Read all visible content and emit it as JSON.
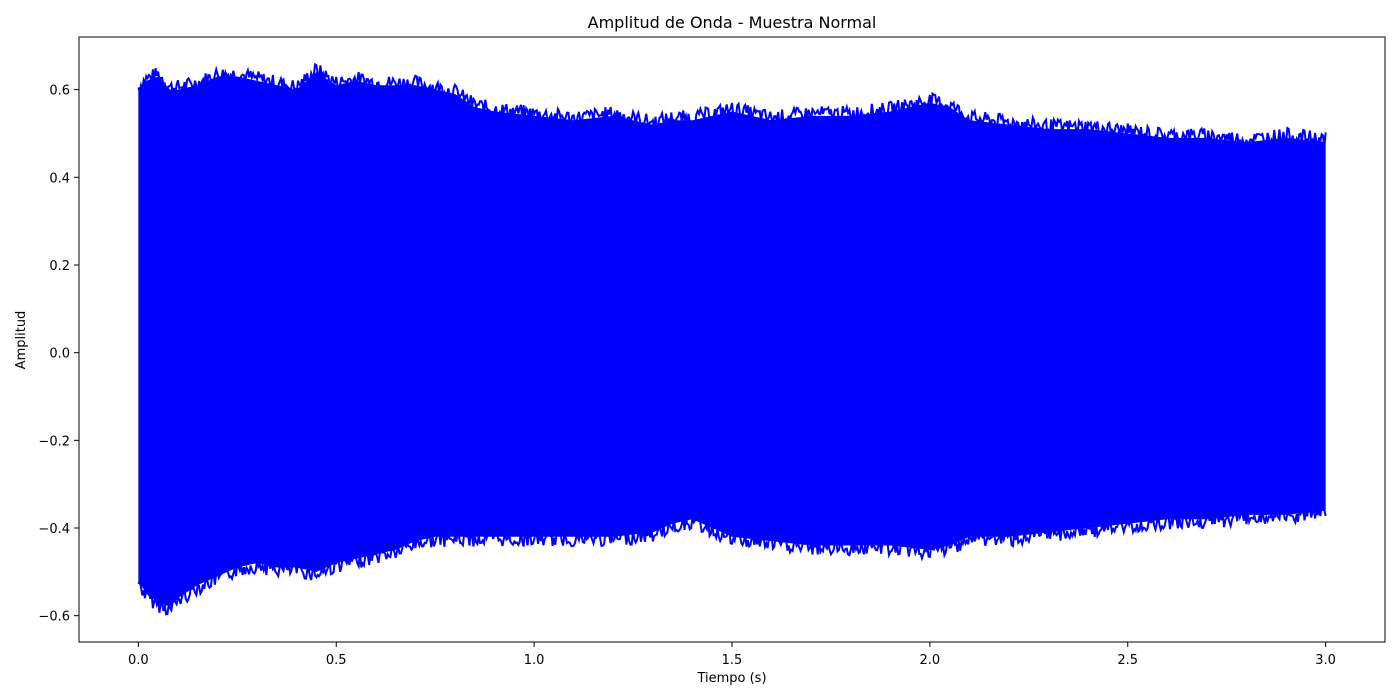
{
  "chart_data": {
    "type": "area",
    "title": "Amplitud de Onda - Muestra Normal",
    "xlabel": "Tiempo (s)",
    "ylabel": "Amplitud",
    "xlim": [
      -0.15,
      3.15
    ],
    "ylim": [
      -0.66,
      0.72
    ],
    "grid": false,
    "legend": "none",
    "colors": {
      "series": "#0000ff",
      "axes": "#000000",
      "background": "#ffffff"
    },
    "x_ticks": [
      {
        "value": 0.0,
        "label": "0.0"
      },
      {
        "value": 0.5,
        "label": "0.5"
      },
      {
        "value": 1.0,
        "label": "1.0"
      },
      {
        "value": 1.5,
        "label": "1.5"
      },
      {
        "value": 2.0,
        "label": "2.0"
      },
      {
        "value": 2.5,
        "label": "2.5"
      },
      {
        "value": 3.0,
        "label": "3.0"
      }
    ],
    "y_ticks": [
      {
        "value": -0.6,
        "label": "−0.6"
      },
      {
        "value": -0.4,
        "label": "−0.4"
      },
      {
        "value": -0.2,
        "label": "−0.2"
      },
      {
        "value": 0.0,
        "label": "0.0"
      },
      {
        "value": 0.2,
        "label": "0.2"
      },
      {
        "value": 0.4,
        "label": "0.4"
      },
      {
        "value": 0.6,
        "label": "0.6"
      }
    ],
    "series": [
      {
        "x": [
          0.0,
          0.02,
          0.05,
          0.08,
          0.1,
          0.15,
          0.2,
          0.25,
          0.3,
          0.35,
          0.4,
          0.45,
          0.5,
          0.55,
          0.6,
          0.65,
          0.7,
          0.75,
          0.8,
          0.85,
          0.9,
          1.0,
          1.1,
          1.2,
          1.3,
          1.35,
          1.4,
          1.5,
          1.6,
          1.7,
          1.8,
          1.9,
          2.0,
          2.05,
          2.1,
          2.2,
          2.3,
          2.4,
          2.5,
          2.6,
          2.7,
          2.8,
          2.9,
          3.0
        ],
        "upper": [
          0.6,
          0.62,
          0.63,
          0.6,
          0.6,
          0.61,
          0.63,
          0.63,
          0.62,
          0.61,
          0.6,
          0.64,
          0.61,
          0.62,
          0.61,
          0.61,
          0.61,
          0.6,
          0.59,
          0.56,
          0.55,
          0.54,
          0.53,
          0.54,
          0.52,
          0.53,
          0.53,
          0.55,
          0.53,
          0.54,
          0.54,
          0.55,
          0.57,
          0.56,
          0.53,
          0.52,
          0.51,
          0.51,
          0.5,
          0.49,
          0.49,
          0.48,
          0.49,
          0.48
        ],
        "lower": [
          -0.52,
          -0.55,
          -0.57,
          -0.58,
          -0.56,
          -0.53,
          -0.51,
          -0.49,
          -0.48,
          -0.49,
          -0.49,
          -0.5,
          -0.48,
          -0.47,
          -0.46,
          -0.45,
          -0.43,
          -0.42,
          -0.42,
          -0.42,
          -0.42,
          -0.42,
          -0.42,
          -0.42,
          -0.41,
          -0.39,
          -0.38,
          -0.42,
          -0.43,
          -0.44,
          -0.44,
          -0.44,
          -0.45,
          -0.44,
          -0.42,
          -0.42,
          -0.41,
          -0.4,
          -0.39,
          -0.38,
          -0.38,
          -0.37,
          -0.37,
          -0.36
        ]
      }
    ]
  }
}
